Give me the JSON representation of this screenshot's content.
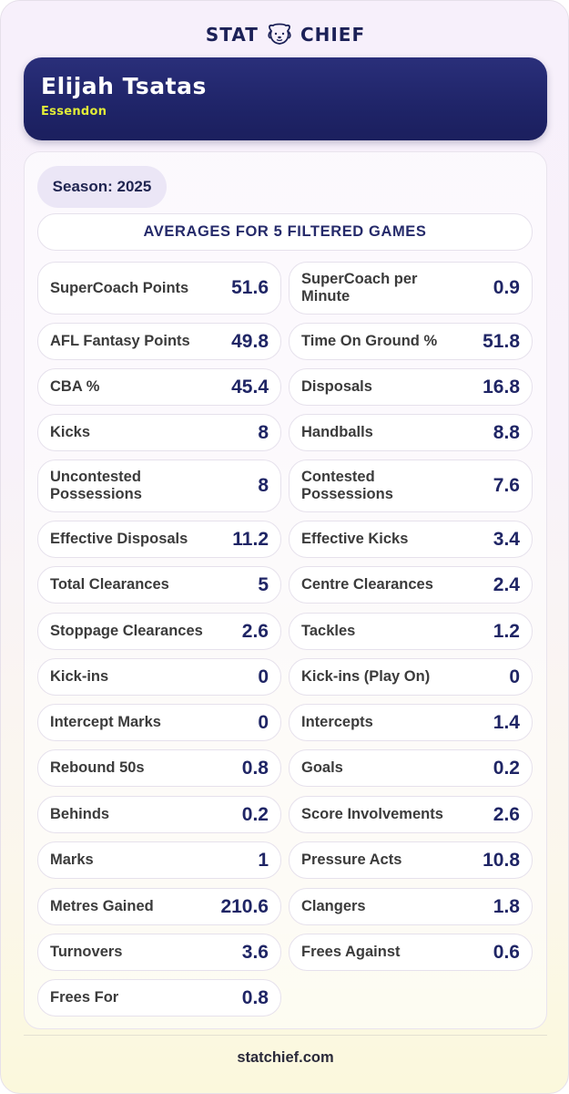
{
  "brand": {
    "left": "STAT",
    "right": "CHIEF",
    "logo_icon": "dog-face-icon"
  },
  "player": {
    "name": "Elijah Tsatas",
    "team": "Essendon"
  },
  "season_label": "Season: 2025",
  "averages_heading": "AVERAGES FOR 5 FILTERED GAMES",
  "stats": [
    {
      "label": "SuperCoach Points",
      "value": "51.6"
    },
    {
      "label": "SuperCoach per Minute",
      "value": "0.9"
    },
    {
      "label": "AFL Fantasy Points",
      "value": "49.8"
    },
    {
      "label": "Time On Ground %",
      "value": "51.8"
    },
    {
      "label": "CBA %",
      "value": "45.4"
    },
    {
      "label": "Disposals",
      "value": "16.8"
    },
    {
      "label": "Kicks",
      "value": "8"
    },
    {
      "label": "Handballs",
      "value": "8.8"
    },
    {
      "label": "Uncontested Possessions",
      "value": "8"
    },
    {
      "label": "Contested Possessions",
      "value": "7.6"
    },
    {
      "label": "Effective Disposals",
      "value": "11.2"
    },
    {
      "label": "Effective Kicks",
      "value": "3.4"
    },
    {
      "label": "Total Clearances",
      "value": "5"
    },
    {
      "label": "Centre Clearances",
      "value": "2.4"
    },
    {
      "label": "Stoppage Clearances",
      "value": "2.6"
    },
    {
      "label": "Tackles",
      "value": "1.2"
    },
    {
      "label": "Kick-ins",
      "value": "0"
    },
    {
      "label": "Kick-ins (Play On)",
      "value": "0"
    },
    {
      "label": "Intercept Marks",
      "value": "0"
    },
    {
      "label": "Intercepts",
      "value": "1.4"
    },
    {
      "label": "Rebound 50s",
      "value": "0.8"
    },
    {
      "label": "Goals",
      "value": "0.2"
    },
    {
      "label": "Behinds",
      "value": "0.2"
    },
    {
      "label": "Score Involvements",
      "value": "2.6"
    },
    {
      "label": "Marks",
      "value": "1"
    },
    {
      "label": "Pressure Acts",
      "value": "10.8"
    },
    {
      "label": "Metres Gained",
      "value": "210.6"
    },
    {
      "label": "Clangers",
      "value": "1.8"
    },
    {
      "label": "Turnovers",
      "value": "3.6"
    },
    {
      "label": "Frees Against",
      "value": "0.6"
    },
    {
      "label": "Frees For",
      "value": "0.8"
    }
  ],
  "footer": "statchief.com"
}
